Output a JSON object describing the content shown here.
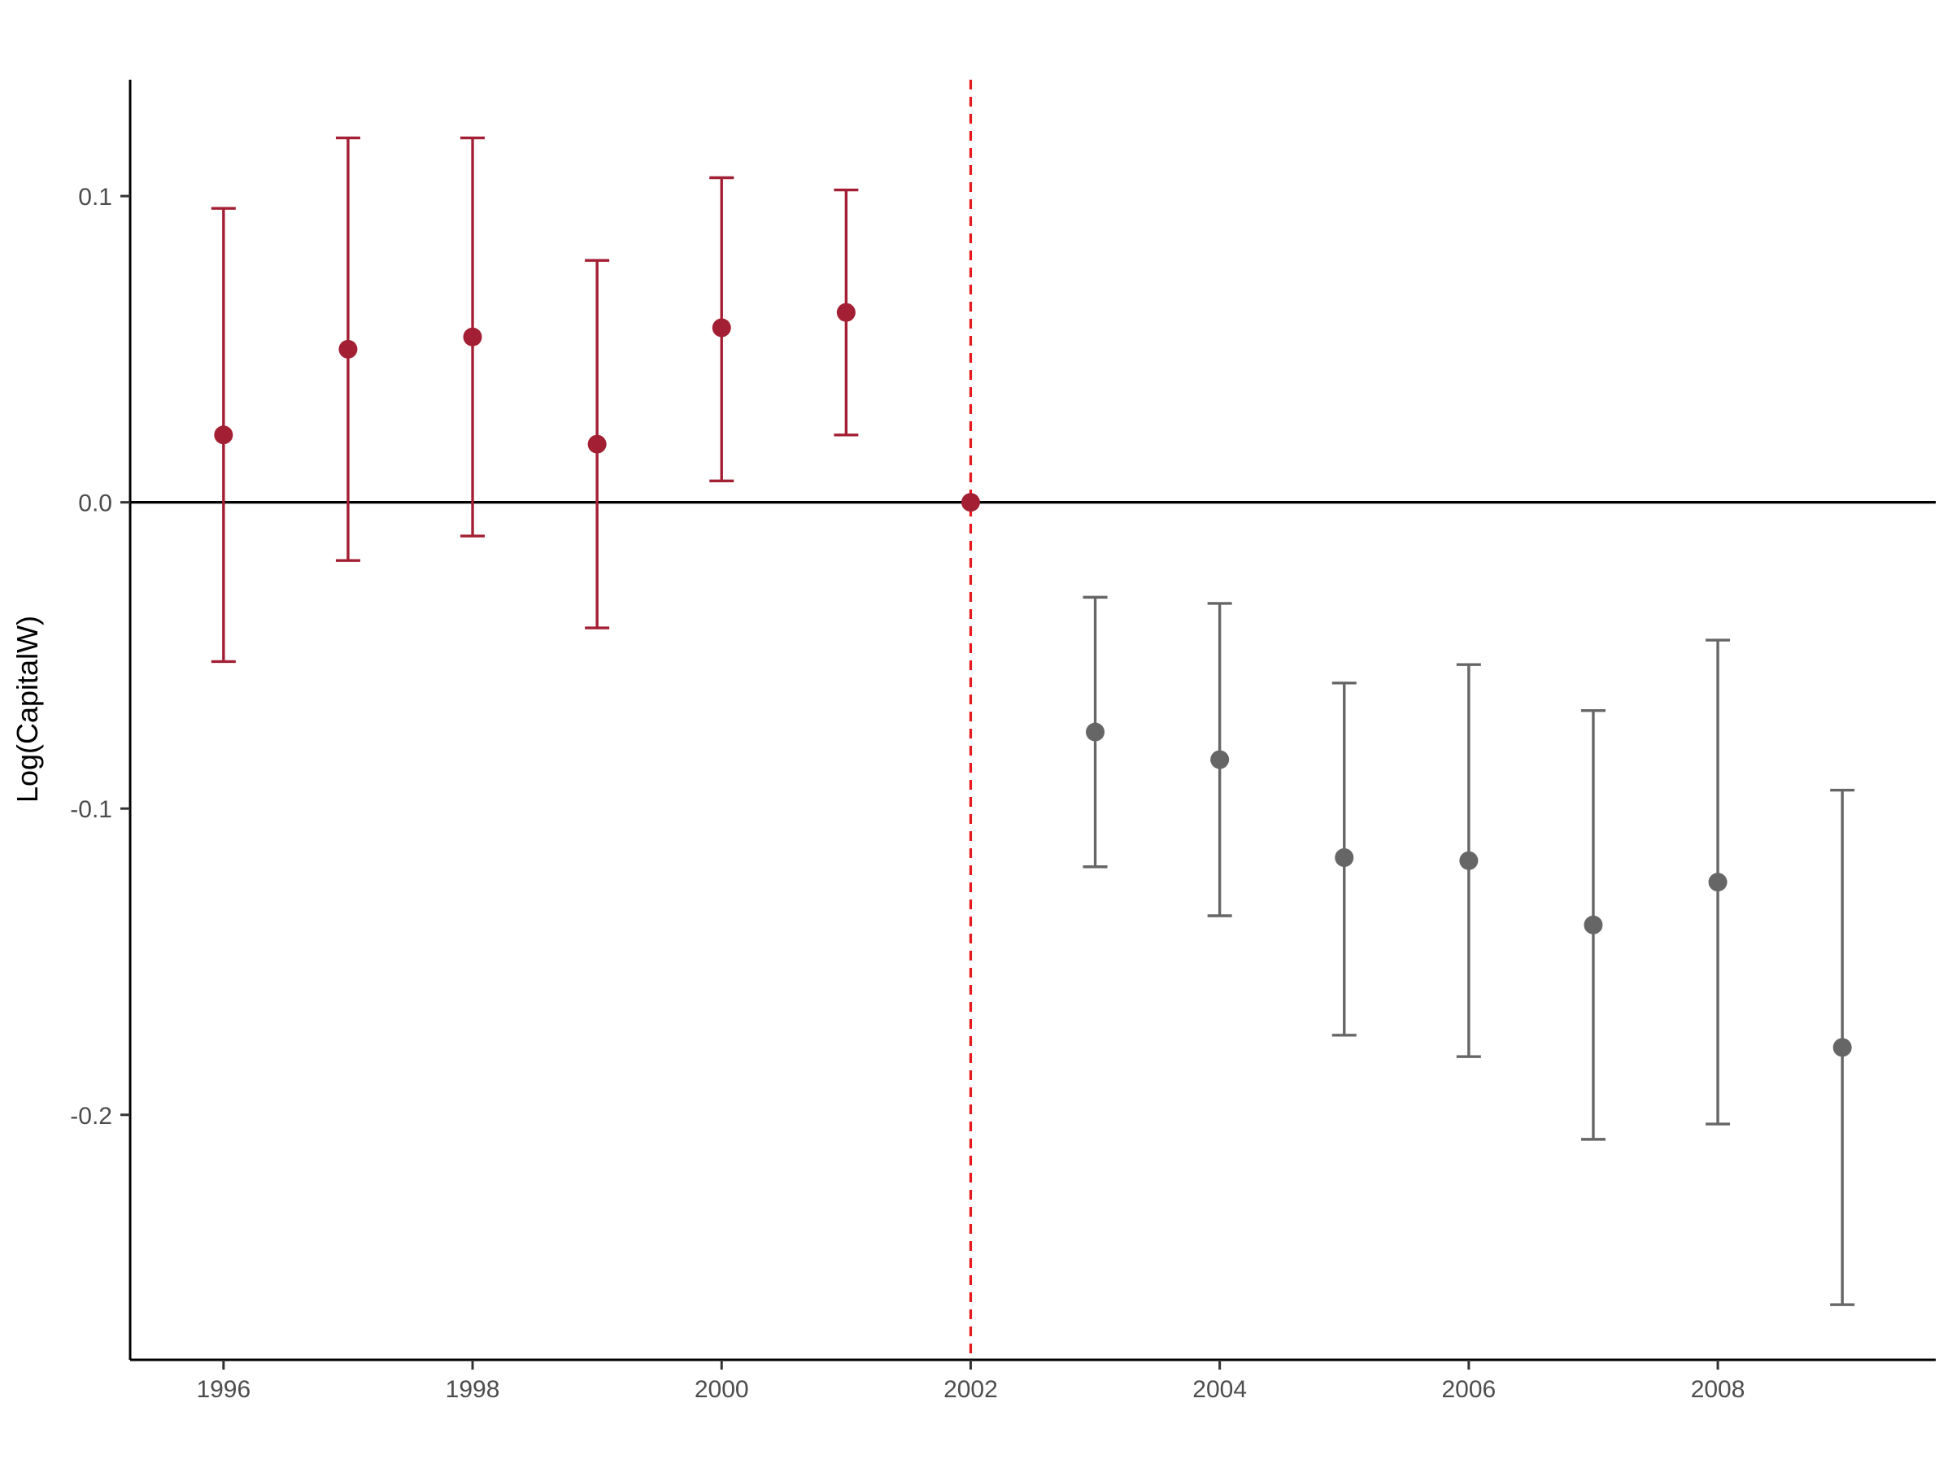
{
  "chart_data": {
    "type": "scatter",
    "subtype": "event-study coefficient plot with error bars",
    "title": "",
    "xlabel": "",
    "ylabel": "Log(CapitalW)",
    "xlim": [
      1995.25,
      2009.75
    ],
    "ylim": [
      -0.28,
      0.138
    ],
    "x_ticks": [
      1996,
      1998,
      2000,
      2002,
      2004,
      2006,
      2008
    ],
    "x_tick_labels": [
      "1996",
      "1998",
      "2000",
      "2002",
      "2004",
      "2006",
      "2008"
    ],
    "y_ticks": [
      -0.2,
      -0.1,
      0.0,
      0.1
    ],
    "y_tick_labels": [
      "-0.2",
      "-0.1",
      "0.0",
      "0.1"
    ],
    "grid": false,
    "reference_lines": {
      "horizontal_y": 0.0,
      "vertical_x": 2002,
      "vertical_style": "dashed",
      "vertical_color": "#e8191c"
    },
    "colors": {
      "pre": "#a31f34",
      "post": "#666666",
      "axis": "#000000"
    },
    "series": [
      {
        "group": "pre",
        "points": [
          {
            "x": 1996,
            "y": 0.022,
            "lower": -0.052,
            "upper": 0.096
          },
          {
            "x": 1997,
            "y": 0.05,
            "lower": -0.019,
            "upper": 0.119
          },
          {
            "x": 1998,
            "y": 0.054,
            "lower": -0.011,
            "upper": 0.119
          },
          {
            "x": 1999,
            "y": 0.019,
            "lower": -0.041,
            "upper": 0.079
          },
          {
            "x": 2000,
            "y": 0.057,
            "lower": 0.007,
            "upper": 0.106
          },
          {
            "x": 2001,
            "y": 0.062,
            "lower": 0.022,
            "upper": 0.102
          },
          {
            "x": 2002,
            "y": 0.0,
            "lower": null,
            "upper": null
          }
        ]
      },
      {
        "group": "post",
        "points": [
          {
            "x": 2003,
            "y": -0.075,
            "lower": -0.119,
            "upper": -0.031
          },
          {
            "x": 2004,
            "y": -0.084,
            "lower": -0.135,
            "upper": -0.033
          },
          {
            "x": 2005,
            "y": -0.116,
            "lower": -0.174,
            "upper": -0.059
          },
          {
            "x": 2006,
            "y": -0.117,
            "lower": -0.181,
            "upper": -0.053
          },
          {
            "x": 2007,
            "y": -0.138,
            "lower": -0.208,
            "upper": -0.068
          },
          {
            "x": 2008,
            "y": -0.124,
            "lower": -0.203,
            "upper": -0.045
          },
          {
            "x": 2009,
            "y": -0.178,
            "lower": -0.262,
            "upper": -0.094
          }
        ]
      }
    ]
  }
}
